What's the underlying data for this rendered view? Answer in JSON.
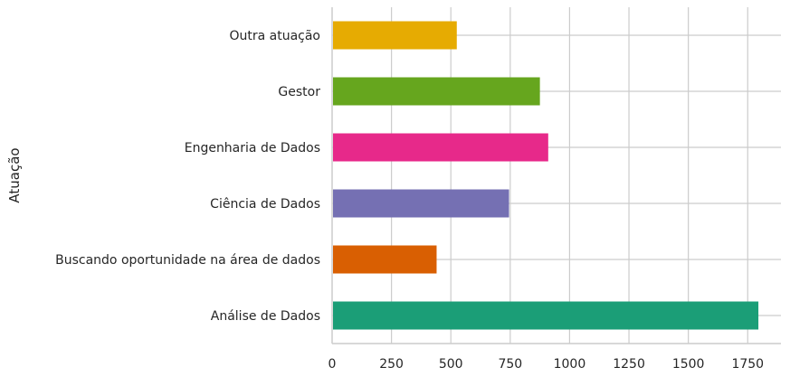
{
  "chart_data": {
    "type": "bar",
    "orientation": "horizontal",
    "categories": [
      "Análise de Dados",
      "Buscando oportunidade na área de dados",
      "Ciência de Dados",
      "Engenharia de Dados",
      "Gestor",
      "Outra atuação"
    ],
    "values": [
      1795,
      440,
      745,
      910,
      875,
      525
    ],
    "colors": [
      "#1b9e77",
      "#d95f02",
      "#7570b3",
      "#e7298a",
      "#66a61e",
      "#e6ab02"
    ],
    "title": "",
    "xlabel": "",
    "ylabel": "Atuação",
    "xlim": [
      0,
      1890
    ],
    "xticks": [
      "0",
      "250",
      "500",
      "750",
      "1000",
      "1250",
      "1500",
      "1750"
    ],
    "grid": true,
    "legend": "none"
  }
}
